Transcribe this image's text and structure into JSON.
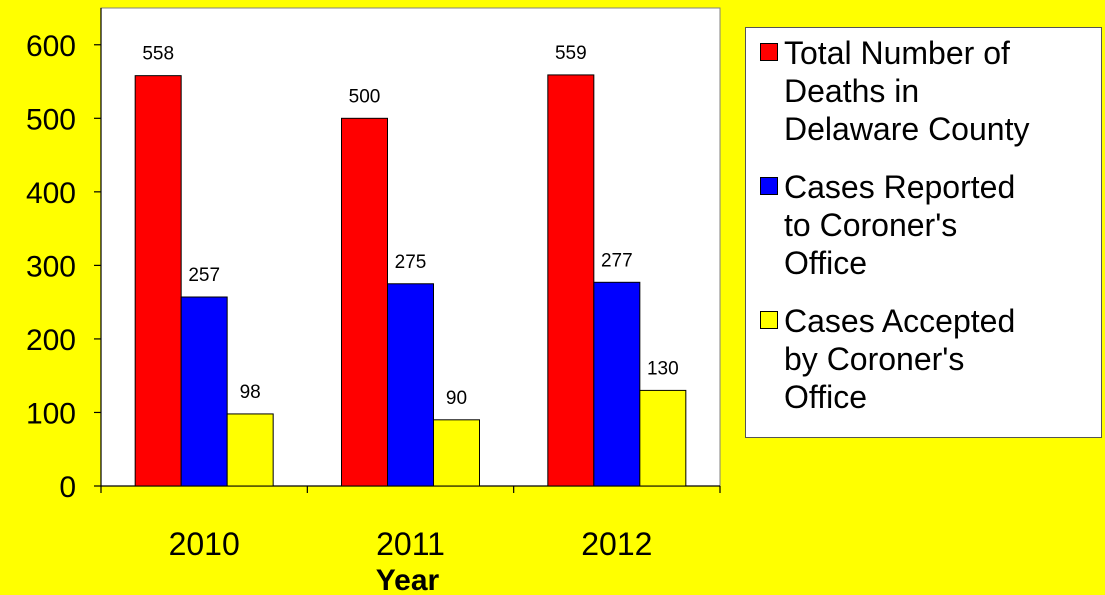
{
  "chart_data": {
    "type": "bar",
    "categories": [
      "2010",
      "2011",
      "2012"
    ],
    "series": [
      {
        "name": "Total Number of Deaths in Delaware County",
        "values": [
          558,
          500,
          559
        ],
        "color": "#ff0000"
      },
      {
        "name": "Cases Reported to Coroner's Office",
        "values": [
          257,
          275,
          277
        ],
        "color": "#0000ff"
      },
      {
        "name": "Cases Accepted by Coroner's Office",
        "values": [
          98,
          90,
          130
        ],
        "color": "#ffff00"
      }
    ],
    "xlabel": "Year",
    "ylabel": "",
    "ylim": [
      0,
      650
    ],
    "yticks": [
      0,
      100,
      200,
      300,
      400,
      500,
      600
    ],
    "data_labels": true,
    "legend_position": "right",
    "background": "#ffff00",
    "plot_background": "#ffffff"
  },
  "legend": {
    "items": [
      {
        "label": "Total Number of\nDeaths in\nDelaware County",
        "color": "#ff0000"
      },
      {
        "label": "Cases Reported\nto Coroner's\nOffice",
        "color": "#0000ff"
      },
      {
        "label": "Cases Accepted\nby Coroner's\nOffice",
        "color": "#ffff00"
      }
    ]
  }
}
